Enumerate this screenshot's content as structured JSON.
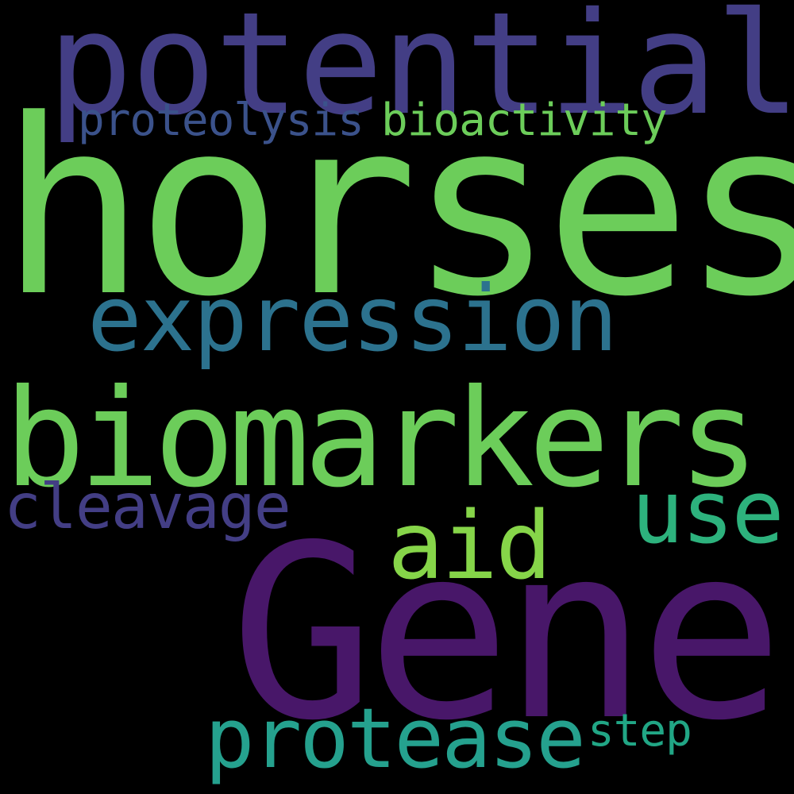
{
  "words": [
    {
      "id": "potential",
      "text": "potential",
      "color": "#433e85"
    },
    {
      "id": "proteolysis",
      "text": "proteolysis",
      "color": "#3b528b"
    },
    {
      "id": "bioactivity",
      "text": "bioactivity",
      "color": "#6ccd5a"
    },
    {
      "id": "horses",
      "text": "horses",
      "color": "#6ccd5a"
    },
    {
      "id": "expression",
      "text": "expression",
      "color": "#2c728e"
    },
    {
      "id": "biomarkers",
      "text": "biomarkers",
      "color": "#6ccd5a"
    },
    {
      "id": "cleavage",
      "text": "cleavage",
      "color": "#433e85"
    },
    {
      "id": "use",
      "text": "use",
      "color": "#2db27d"
    },
    {
      "id": "aid",
      "text": "aid",
      "color": "#86d549"
    },
    {
      "id": "gene",
      "text": "Gene",
      "color": "#481769"
    },
    {
      "id": "protease",
      "text": "protease",
      "color": "#25a18e"
    },
    {
      "id": "step",
      "text": "step",
      "color": "#21a685"
    }
  ],
  "background": "#000000"
}
